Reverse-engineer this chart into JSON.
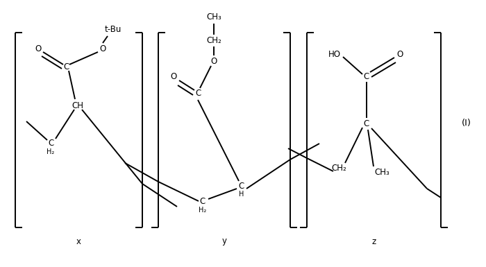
{
  "figure_width": 7.0,
  "figure_height": 3.85,
  "dpi": 100,
  "bg_color": "#ffffff",
  "line_color": "#000000",
  "line_width": 1.4,
  "font_size": 8.5,
  "label_I": "(I)",
  "label_x": "x",
  "label_y": "y",
  "label_z": "z",
  "font_family": "DejaVu Sans"
}
